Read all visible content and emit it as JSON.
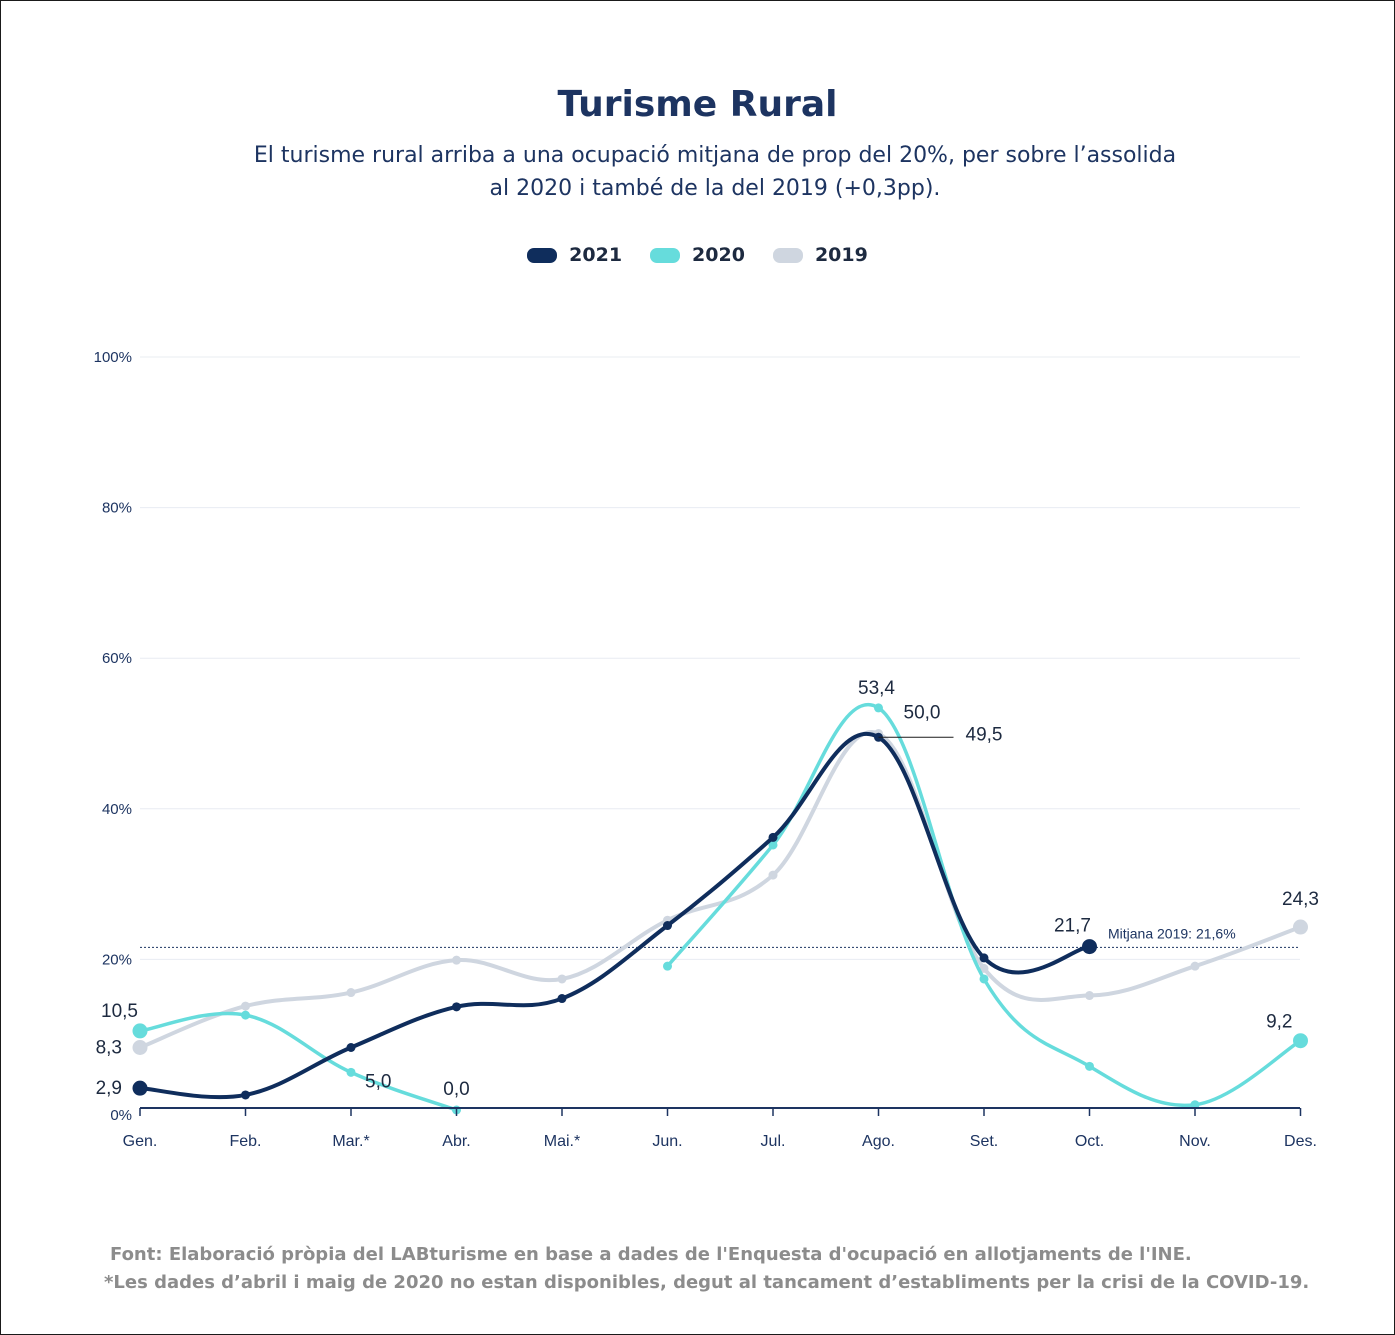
{
  "title": "Turisme Rural",
  "subtitle_line1": "El turisme rural arriba a una ocupació mitjana de prop del 20%, per sobre l’assolida",
  "subtitle_line2": "al 2020 i també de la del 2019 (+0,3pp).",
  "footnote_source": "Font: Elaboració pròpia del LABturisme en base a dades de l'Enquesta d'ocupació en allotjaments de l'INE.",
  "footnote_covid": "*Les dades d’abril i maig de 2020 no estan disponibles, degut al tancament d’establiments per la crisi de la COVID-19.",
  "colors": {
    "2021": "#0f2d5c",
    "2020": "#66dcdc",
    "2019": "#cfd6e0",
    "axis_text": "#1d3461",
    "grid": "#e8ecf2"
  },
  "chart_data": {
    "type": "line",
    "categories": [
      "Gen.",
      "Feb.",
      "Mar.*",
      "Abr.",
      "Mai.*",
      "Jun.",
      "Jul.",
      "Ago.",
      "Set.",
      "Oct.",
      "Nov.",
      "Des."
    ],
    "ylim": [
      0,
      100
    ],
    "yticks": [
      0,
      20,
      40,
      60,
      80,
      100
    ],
    "ytick_labels": [
      "0%",
      "20%",
      "40%",
      "60%",
      "80%",
      "100%"
    ],
    "legend": [
      "2021",
      "2020",
      "2019"
    ],
    "legend_position": "top-center",
    "grid": true,
    "series": [
      {
        "name": "2019",
        "values": [
          8.3,
          13.8,
          15.6,
          19.9,
          17.4,
          25.2,
          31.2,
          50.0,
          18.8,
          15.2,
          19.1,
          24.3
        ]
      },
      {
        "name": "2020",
        "values": [
          10.5,
          12.6,
          5.0,
          0.0,
          null,
          19.1,
          35.2,
          53.4,
          17.4,
          5.8,
          0.7,
          9.2
        ]
      },
      {
        "name": "2021",
        "values": [
          2.9,
          2.0,
          8.3,
          13.7,
          14.8,
          24.5,
          36.2,
          49.5,
          20.2,
          21.7,
          null,
          null
        ]
      }
    ],
    "reference_line": {
      "value": 21.6,
      "label": "Mitjana 2019: 21,6%"
    },
    "data_labels": [
      {
        "series": "2019",
        "index": 0,
        "text": "8,3"
      },
      {
        "series": "2019",
        "index": 7,
        "text": "50,0"
      },
      {
        "series": "2019",
        "index": 11,
        "text": "24,3"
      },
      {
        "series": "2020",
        "index": 0,
        "text": "10,5"
      },
      {
        "series": "2020",
        "index": 2,
        "text": "5,0"
      },
      {
        "series": "2020",
        "index": 3,
        "text": "0,0"
      },
      {
        "series": "2020",
        "index": 7,
        "text": "53,4"
      },
      {
        "series": "2020",
        "index": 11,
        "text": "9,2"
      },
      {
        "series": "2021",
        "index": 0,
        "text": "2,9"
      },
      {
        "series": "2021",
        "index": 7,
        "text": "49,5"
      },
      {
        "series": "2021",
        "index": 9,
        "text": "21,7"
      }
    ]
  }
}
